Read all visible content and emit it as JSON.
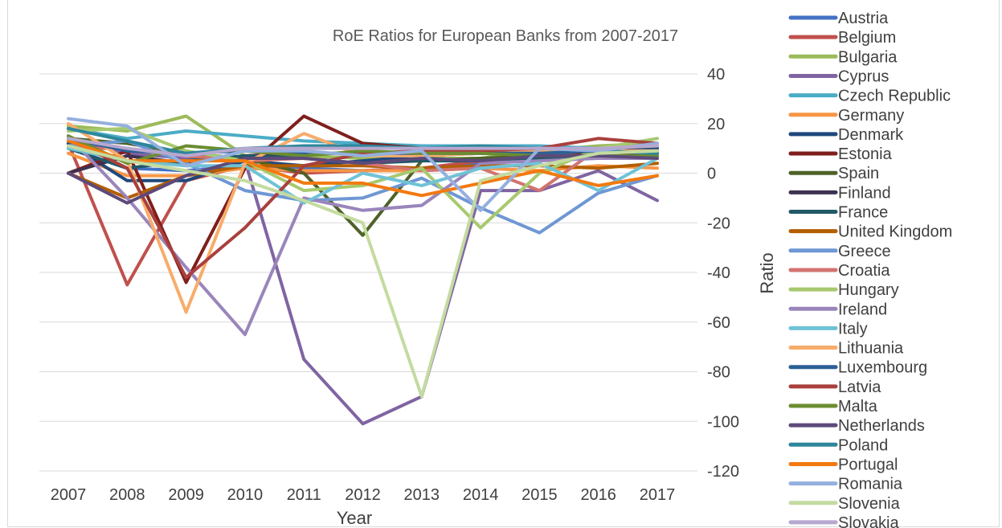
{
  "chart_data": {
    "type": "line",
    "title": "RoE Ratios for European Banks from 2007-2017",
    "xlabel": "Year",
    "ylabel": "Ratio",
    "x": [
      "2007",
      "2008",
      "2009",
      "2010",
      "2011",
      "2012",
      "2013",
      "2014",
      "2015",
      "2016",
      "2017"
    ],
    "ylim": [
      -120,
      40
    ],
    "yticks": [
      40,
      20,
      0,
      -20,
      -40,
      -60,
      -80,
      -100,
      -120
    ],
    "grid": true,
    "legend_position": "right",
    "series": [
      {
        "name": "Austria",
        "color": "#4472c4",
        "values": [
          10,
          2,
          1,
          3,
          2,
          1,
          2,
          4,
          7,
          8,
          9
        ]
      },
      {
        "name": "Belgium",
        "color": "#c0504d",
        "values": [
          12,
          -45,
          -3,
          3,
          0,
          1,
          2,
          5,
          6,
          8,
          9
        ]
      },
      {
        "name": "Bulgaria",
        "color": "#9bbb59",
        "values": [
          19,
          17,
          23,
          7,
          7,
          6,
          6,
          6,
          9,
          11,
          12
        ]
      },
      {
        "name": "Cyprus",
        "color": "#8064a2",
        "values": [
          14,
          8,
          6,
          5,
          -75,
          -101,
          -90,
          -7,
          -7,
          1,
          -11
        ]
      },
      {
        "name": "Czech Republic",
        "color": "#4bacc6",
        "values": [
          18,
          14,
          17,
          15,
          13,
          12,
          11,
          11,
          11,
          10,
          10
        ]
      },
      {
        "name": "Germany",
        "color": "#f79646",
        "values": [
          8,
          -1,
          -1,
          2,
          1,
          1,
          1,
          2,
          1,
          3,
          2
        ]
      },
      {
        "name": "Denmark",
        "color": "#1f497d",
        "values": [
          12,
          -3,
          -3,
          5,
          3,
          5,
          7,
          8,
          9,
          10,
          10
        ]
      },
      {
        "name": "Estonia",
        "color": "#7f1f1c",
        "values": [
          0,
          9,
          -44,
          2,
          23,
          12,
          10,
          10,
          9,
          8,
          8
        ]
      },
      {
        "name": "Spain",
        "color": "#4f6228",
        "values": [
          14,
          12,
          8,
          6,
          0,
          -25,
          5,
          6,
          7,
          7,
          7
        ]
      },
      {
        "name": "Finland",
        "color": "#3f3151",
        "values": [
          0,
          7,
          4,
          7,
          8,
          8,
          8,
          8,
          9,
          9,
          9
        ]
      },
      {
        "name": "France",
        "color": "#215967",
        "values": [
          10,
          2,
          5,
          7,
          6,
          4,
          5,
          5,
          6,
          7,
          7
        ]
      },
      {
        "name": "United Kingdom",
        "color": "#b35e00",
        "values": [
          0,
          -10,
          -1,
          3,
          3,
          3,
          2,
          3,
          3,
          2,
          4
        ]
      },
      {
        "name": "Greece",
        "color": "#6f97d3",
        "values": [
          11,
          13,
          4,
          -7,
          -11,
          -10,
          -2,
          -14,
          -24,
          -8,
          -1
        ]
      },
      {
        "name": "Croatia",
        "color": "#d27470",
        "values": [
          10,
          10,
          7,
          5,
          6,
          4,
          1,
          2,
          -7,
          10,
          11
        ]
      },
      {
        "name": "Hungary",
        "color": "#a7c96f",
        "values": [
          17,
          18,
          9,
          5,
          -7,
          -5,
          2,
          -22,
          0,
          10,
          14
        ]
      },
      {
        "name": "Ireland",
        "color": "#9a85bb",
        "values": [
          15,
          -10,
          -38,
          -65,
          -10,
          -15,
          -13,
          4,
          5,
          6,
          6
        ]
      },
      {
        "name": "Italy",
        "color": "#70c2d6",
        "values": [
          10,
          5,
          3,
          3,
          -12,
          0,
          -5,
          2,
          4,
          -7,
          6
        ]
      },
      {
        "name": "Lithuania",
        "color": "#f8ac6b",
        "values": [
          20,
          5,
          -56,
          4,
          16,
          7,
          7,
          8,
          9,
          9,
          9
        ]
      },
      {
        "name": "Luxembourg",
        "color": "#2c5f97",
        "values": [
          14,
          9,
          8,
          9,
          8,
          8,
          8,
          8,
          8,
          9,
          8
        ]
      },
      {
        "name": "Latvia",
        "color": "#a9403d",
        "values": [
          14,
          2,
          -42,
          -22,
          3,
          8,
          9,
          9,
          10,
          14,
          12
        ]
      },
      {
        "name": "Malta",
        "color": "#6b8c31",
        "values": [
          15,
          4,
          11,
          9,
          7,
          9,
          8,
          8,
          7,
          7,
          7
        ]
      },
      {
        "name": "Netherlands",
        "color": "#5d4a7a",
        "values": [
          0,
          -12,
          -1,
          6,
          6,
          4,
          6,
          5,
          7,
          7,
          6
        ]
      },
      {
        "name": "Poland",
        "color": "#2e869c",
        "values": [
          18,
          13,
          8,
          10,
          11,
          11,
          10,
          11,
          10,
          9,
          8
        ]
      },
      {
        "name": "Portugal",
        "color": "#f27a10",
        "values": [
          13,
          5,
          5,
          5,
          -4,
          -4,
          -9,
          -4,
          1,
          -5,
          -1
        ]
      },
      {
        "name": "Romania",
        "color": "#94b0de",
        "values": [
          22,
          19,
          3,
          9,
          9,
          7,
          9,
          -15,
          10,
          9,
          12
        ]
      },
      {
        "name": "Slovenia",
        "color": "#c4dba0",
        "values": [
          11,
          5,
          1,
          -3,
          -11,
          -20,
          -90,
          -3,
          3,
          8,
          9
        ]
      },
      {
        "name": "Slovakia",
        "color": "#b7a8cf",
        "values": [
          14,
          10,
          7,
          10,
          10,
          10,
          10,
          10,
          10,
          10,
          11
        ]
      }
    ]
  }
}
